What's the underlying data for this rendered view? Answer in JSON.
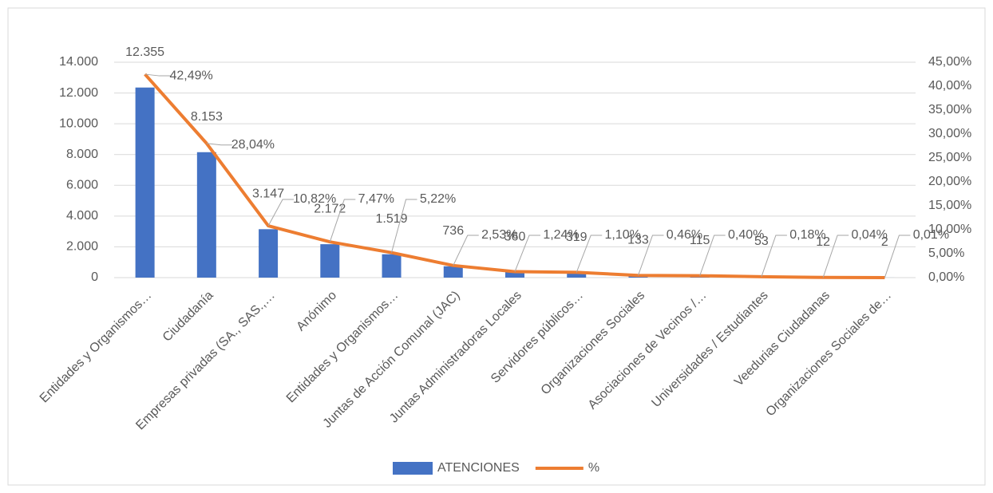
{
  "chart_data": {
    "type": "bar",
    "categories": [
      "Entidades y Organismos…",
      "Ciudadanía",
      "Empresas privadas (SA., SAS.,…",
      "Anónimo",
      "Entidades y Organismos…",
      "Juntas de Acción Comunal (JAC)",
      "Juntas Administradoras Locales",
      "Servidores públicos…",
      "Organizaciones Sociales",
      "Asociaciones de Vecinos /…",
      "Universidades / Estudiantes",
      "Veedurias Ciudadanas",
      "Organizaciones Sociales de…"
    ],
    "series": [
      {
        "name": "ATENCIONES",
        "type": "bar",
        "color": "#4472c4",
        "values": [
          12355,
          8153,
          3147,
          2172,
          1519,
          736,
          360,
          319,
          133,
          115,
          53,
          12,
          2
        ],
        "value_labels": [
          "12.355",
          "8.153",
          "3.147",
          "2.172",
          "1.519",
          "736",
          "360",
          "319",
          "133",
          "115",
          "53",
          "12",
          "2"
        ]
      },
      {
        "name": "%",
        "type": "line",
        "axis": "y2",
        "color": "#ed7d31",
        "values": [
          42.49,
          28.04,
          10.82,
          7.47,
          5.22,
          2.53,
          1.24,
          1.1,
          0.46,
          0.4,
          0.18,
          0.04,
          0.01
        ],
        "value_labels": [
          "42,49%",
          "28,04%",
          "10,82%",
          "7,47%",
          "5,22%",
          "2,53%",
          "1,24%",
          "1,10%",
          "0,46%",
          "0,40%",
          "0,18%",
          "0,04%",
          "0,01%"
        ]
      }
    ],
    "ylim": [
      0,
      14000
    ],
    "yticks": [
      0,
      {
        "value": 2000,
        "label": "2.000"
      },
      {
        "value": 4000,
        "label": "4.000"
      },
      {
        "value": 6000,
        "label": "6.000"
      },
      {
        "value": 8000,
        "label": "8.000"
      },
      {
        "value": 10000,
        "label": "10.000"
      },
      {
        "value": 12000,
        "label": "12.000"
      },
      {
        "value": 14000,
        "label": "14.000"
      }
    ],
    "y2lim": [
      0,
      45
    ],
    "y2ticks": [
      {
        "value": 0,
        "label": "0,00%"
      },
      {
        "value": 5,
        "label": "5,00%"
      },
      {
        "value": 10,
        "label": "10,00%"
      },
      {
        "value": 15,
        "label": "15,00%"
      },
      {
        "value": 20,
        "label": "20,00%"
      },
      {
        "value": 25,
        "label": "25,00%"
      },
      {
        "value": 30,
        "label": "30,00%"
      },
      {
        "value": 35,
        "label": "35,00%"
      },
      {
        "value": 40,
        "label": "40,00%"
      },
      {
        "value": 45,
        "label": "45,00%"
      }
    ],
    "grid": true,
    "legend": "bottom"
  }
}
